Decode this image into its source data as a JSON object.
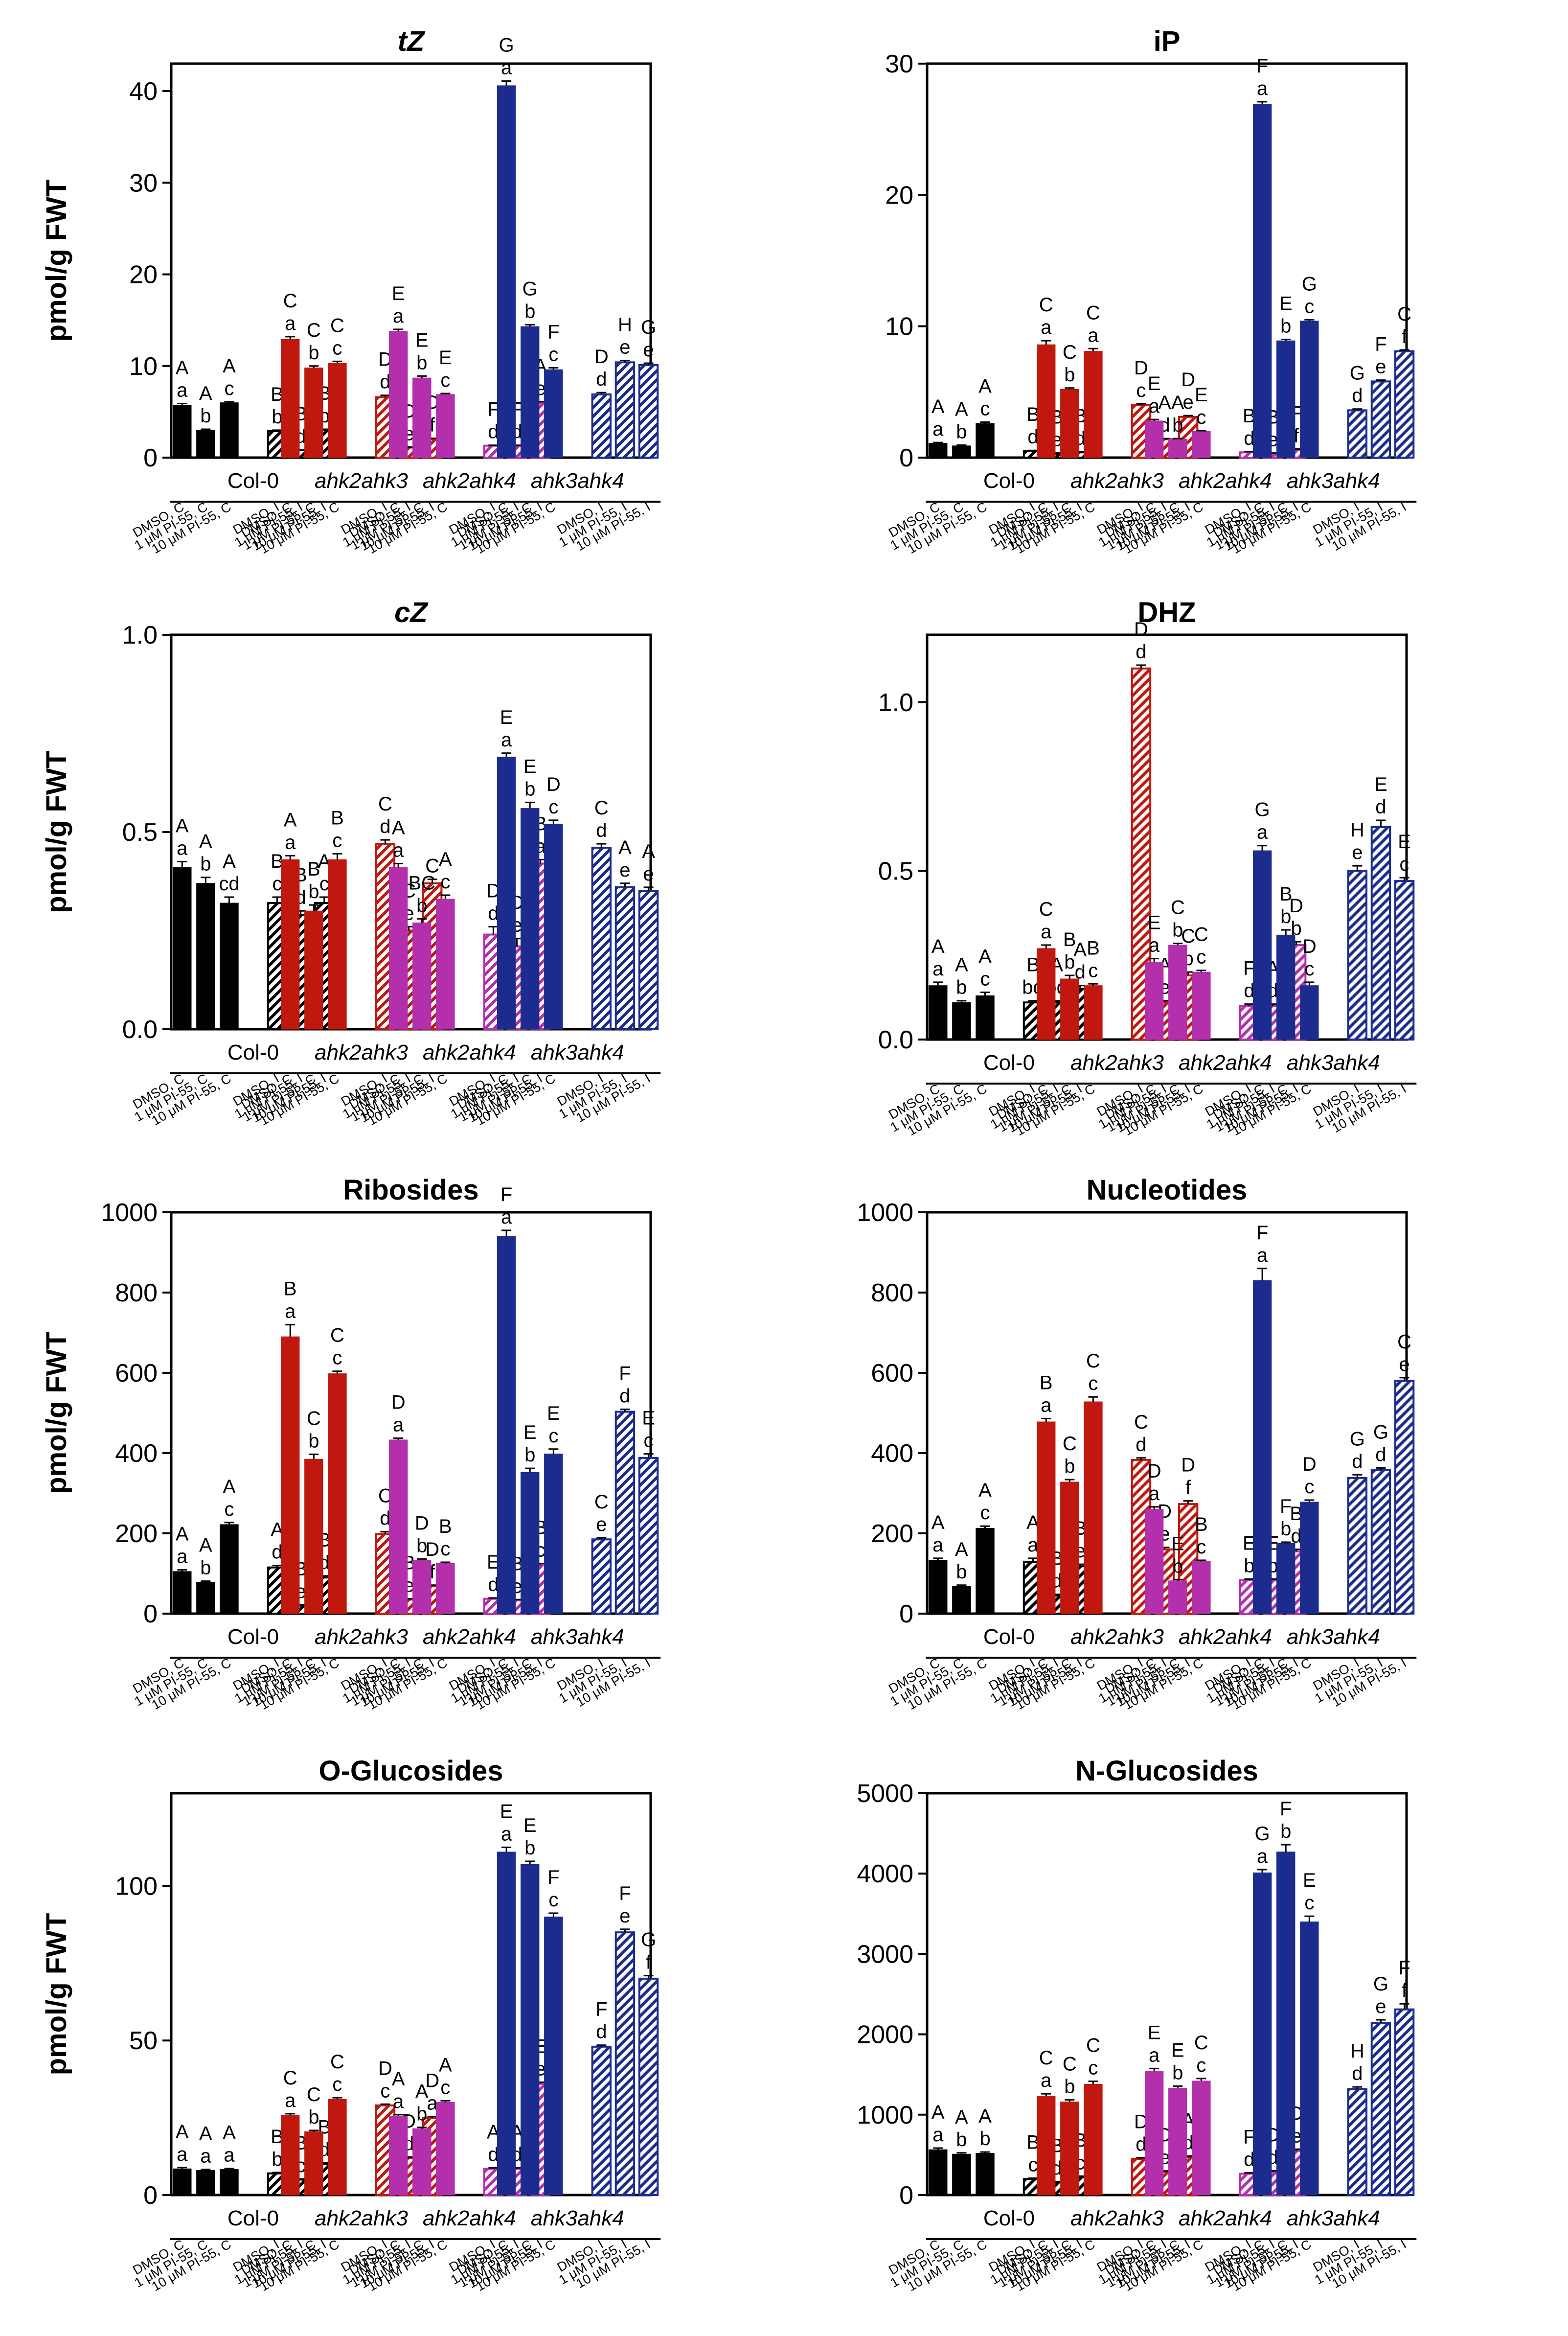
{
  "figure": {
    "colors": {
      "col0": "#000000",
      "ahk2ahk3": "#c0180f",
      "ahk2ahk4": "#b42fac",
      "ahk3ahk4": "#1c2c8e"
    },
    "ylabel": "pmol/g FWT",
    "genotypes": [
      "Col-0",
      "ahk2ahk3",
      "ahk2ahk4",
      "ahk3ahk4"
    ],
    "treatments": [
      "DMSO",
      "1 μM PI-55",
      "10 μM PI-55"
    ],
    "tissue_codes": [
      "C",
      "I"
    ]
  },
  "chart_data": [
    {
      "type": "bar",
      "title": "tZ",
      "ylabel": "pmol/g FWT",
      "ylim": [
        0,
        43
      ],
      "yticks": [
        0,
        10,
        20,
        30,
        40
      ],
      "values": [
        [
          5.7,
          3.0,
          6.0,
          2.9,
          0.8,
          3.0
        ],
        [
          12.9,
          9.8,
          10.3,
          6.6,
          1.1,
          2.0
        ],
        [
          13.8,
          8.7,
          6.9,
          1.3,
          1.3,
          6.0
        ],
        [
          40.6,
          14.3,
          9.6,
          6.9,
          10.4,
          10.1
        ]
      ],
      "errors": [
        [
          0.2,
          0.1,
          0.1,
          0.1,
          0.05,
          0.1
        ],
        [
          0.3,
          0.2,
          0.2,
          0.2,
          0.05,
          0.1
        ],
        [
          0.2,
          0.2,
          0.1,
          0.05,
          0.05,
          0.1
        ],
        [
          0.5,
          0.2,
          0.2,
          0.2,
          0.2,
          0.2
        ]
      ],
      "upper": [
        [
          "A",
          "A",
          "A",
          "B",
          "B",
          "B"
        ],
        [
          "C",
          "C",
          "C",
          "D",
          "D",
          "D"
        ],
        [
          "E",
          "E",
          "E",
          "F",
          "F",
          "A"
        ],
        [
          "G",
          "G",
          "F",
          "D",
          "H",
          "G"
        ]
      ],
      "lower": [
        [
          "a",
          "b",
          "c",
          "b",
          "d",
          "b"
        ],
        [
          "a",
          "b",
          "c",
          "d",
          "e",
          "f"
        ],
        [
          "a",
          "b",
          "c",
          "d",
          "d",
          "e"
        ],
        [
          "a",
          "b",
          "c",
          "d",
          "e",
          "e"
        ]
      ]
    },
    {
      "type": "bar",
      "title": "iP",
      "ylabel": "",
      "ylim": [
        0,
        30
      ],
      "yticks": [
        0,
        10,
        20,
        30
      ],
      "values": [
        [
          1.1,
          0.9,
          2.6,
          0.5,
          0.3,
          0.4
        ],
        [
          8.6,
          5.2,
          8.1,
          4.0,
          1.4,
          3.1
        ],
        [
          2.8,
          1.4,
          2.0,
          0.4,
          0.3,
          0.6
        ],
        [
          26.9,
          8.9,
          10.4,
          3.6,
          5.8,
          8.1
        ]
      ],
      "errors": [
        [
          0.05,
          0.05,
          0.1,
          0.05,
          0.05,
          0.05
        ],
        [
          0.3,
          0.1,
          0.2,
          0.1,
          0.05,
          0.1
        ],
        [
          0.1,
          0.05,
          0.05,
          0.05,
          0.05,
          0.05
        ],
        [
          0.2,
          0.1,
          0.1,
          0.1,
          0.1,
          0.1
        ]
      ],
      "upper": [
        [
          "A",
          "A",
          "A",
          "B",
          "B",
          "B"
        ],
        [
          "C",
          "C",
          "C",
          "D",
          "A",
          "D"
        ],
        [
          "E",
          "A",
          "E",
          "B",
          "B",
          "F"
        ],
        [
          "F",
          "E",
          "G",
          "G",
          "F",
          "C"
        ]
      ],
      "lower": [
        [
          "a",
          "b",
          "c",
          "d",
          "e",
          "d"
        ],
        [
          "a",
          "b",
          "a",
          "c",
          "d",
          "e"
        ],
        [
          "a",
          "b",
          "c",
          "d",
          "e",
          "f"
        ],
        [
          "a",
          "b",
          "c",
          "d",
          "e",
          "f"
        ]
      ]
    },
    {
      "type": "bar",
      "title": "cZ",
      "ylabel": "pmol/g FWT",
      "ylim": [
        0,
        1.0
      ],
      "yticks": [
        0.0,
        0.5,
        1.0
      ],
      "values": [
        [
          0.41,
          0.37,
          0.32,
          0.32,
          0.29,
          0.32
        ],
        [
          0.43,
          0.3,
          0.43,
          0.47,
          0.25,
          0.37
        ],
        [
          0.41,
          0.27,
          0.33,
          0.24,
          0.21,
          0.42
        ],
        [
          0.69,
          0.56,
          0.52,
          0.46,
          0.36,
          0.35
        ]
      ],
      "errors": [
        [
          0.015,
          0.015,
          0.015,
          0.015,
          0.01,
          0.015
        ],
        [
          0.01,
          0.015,
          0.015,
          0.01,
          0.01,
          0.01
        ],
        [
          0.01,
          0.01,
          0.01,
          0.02,
          0.02,
          0.01
        ],
        [
          0.01,
          0.015,
          0.01,
          0.01,
          0.01,
          0.01
        ]
      ],
      "upper": [
        [
          "A",
          "A",
          "A",
          "B",
          "B",
          "A"
        ],
        [
          "A",
          "B",
          "B",
          "C",
          "C",
          "C"
        ],
        [
          "A",
          "BC",
          "A",
          "D",
          "D",
          "B"
        ],
        [
          "E",
          "E",
          "D",
          "C",
          "A",
          "A"
        ]
      ],
      "lower": [
        [
          "a",
          "b",
          "cd",
          "c",
          "d",
          "c"
        ],
        [
          "a",
          "b",
          "c",
          "d",
          "e",
          ""
        ],
        [
          "a",
          "b",
          "c",
          "d",
          "e",
          "a"
        ],
        [
          "a",
          "b",
          "c",
          "d",
          "e",
          "e"
        ]
      ]
    },
    {
      "type": "bar",
      "title": "DHZ",
      "ylabel": "",
      "ylim": [
        0,
        1.2
      ],
      "yticks": [
        0.0,
        0.5,
        1.0
      ],
      "values": [
        [
          0.16,
          0.11,
          0.13,
          0.11,
          0.11,
          0.15
        ],
        [
          0.27,
          0.18,
          0.16,
          1.1,
          0.11,
          0.19
        ],
        [
          0.23,
          0.28,
          0.2,
          0.1,
          0.1,
          0.28
        ],
        [
          0.56,
          0.31,
          0.16,
          0.5,
          0.63,
          0.47
        ]
      ],
      "errors": [
        [
          0.01,
          0.005,
          0.01,
          0.005,
          0.005,
          0.01
        ],
        [
          0.01,
          0.01,
          0.005,
          0.01,
          0.005,
          0.01
        ],
        [
          0.01,
          0.005,
          0.005,
          0.005,
          0.005,
          0.01
        ],
        [
          0.015,
          0.015,
          0.01,
          0.015,
          0.02,
          0.01
        ]
      ],
      "upper": [
        [
          "A",
          "A",
          "A",
          "B",
          "A",
          "A"
        ],
        [
          "C",
          "B",
          "B",
          "D",
          "A",
          "C"
        ],
        [
          "E",
          "C",
          "C",
          "F",
          "A",
          "D"
        ],
        [
          "G",
          "B",
          "D",
          "H",
          "E",
          "E"
        ]
      ],
      "lower": [
        [
          "a",
          "b",
          "c",
          "bd",
          "bd",
          "d"
        ],
        [
          "a",
          "b",
          "c",
          "d",
          "e",
          "b"
        ],
        [
          "a",
          "b",
          "c",
          "d",
          "d",
          "b"
        ],
        [
          "a",
          "b",
          "c",
          "e",
          "d",
          "c"
        ]
      ]
    },
    {
      "type": "bar",
      "title": "Ribosides",
      "ylabel": "pmol/g FWT",
      "ylim": [
        0,
        1000
      ],
      "yticks": [
        0,
        200,
        400,
        600,
        800,
        1000
      ],
      "values": [
        [
          105,
          78,
          222,
          115,
          20,
          90
        ],
        [
          690,
          385,
          598,
          198,
          35,
          68
        ],
        [
          433,
          133,
          125,
          37,
          33,
          122
        ],
        [
          940,
          352,
          398,
          185,
          503,
          388
        ]
      ],
      "errors": [
        [
          4,
          3,
          5,
          5,
          2,
          4
        ],
        [
          30,
          12,
          6,
          6,
          2,
          3
        ],
        [
          4,
          3,
          3,
          2,
          2,
          3
        ],
        [
          15,
          10,
          12,
          4,
          6,
          10
        ]
      ],
      "upper": [
        [
          "A",
          "A",
          "A",
          "A",
          "B",
          "B"
        ],
        [
          "B",
          "C",
          "C",
          "C",
          "B",
          "D"
        ],
        [
          "D",
          "D",
          "B",
          "E",
          "B",
          "B"
        ],
        [
          "F",
          "E",
          "E",
          "C",
          "F",
          "E"
        ]
      ],
      "lower": [
        [
          "a",
          "b",
          "c",
          "d",
          "e",
          "d"
        ],
        [
          "a",
          "b",
          "c",
          "d",
          "e",
          "f"
        ],
        [
          "a",
          "b",
          "c",
          "d",
          "e",
          "c"
        ],
        [
          "a",
          "b",
          "c",
          "e",
          "d",
          "c"
        ]
      ]
    },
    {
      "type": "bar",
      "title": "Nucleotides",
      "ylabel": "",
      "ylim": [
        0,
        1000
      ],
      "yticks": [
        0,
        200,
        400,
        600,
        800,
        1000
      ],
      "values": [
        [
          133,
          68,
          213,
          128,
          45,
          118
        ],
        [
          478,
          328,
          528,
          383,
          160,
          273
        ],
        [
          260,
          82,
          130,
          83,
          83,
          155
        ],
        [
          830,
          175,
          278,
          338,
          358,
          580
        ]
      ],
      "errors": [
        [
          5,
          3,
          5,
          10,
          3,
          5
        ],
        [
          8,
          6,
          12,
          5,
          5,
          8
        ],
        [
          6,
          3,
          3,
          3,
          3,
          5
        ],
        [
          30,
          3,
          5,
          8,
          5,
          8
        ]
      ],
      "upper": [
        [
          "A",
          "A",
          "A",
          "A",
          "B",
          "B"
        ],
        [
          "B",
          "C",
          "C",
          "C",
          "D",
          "D"
        ],
        [
          "D",
          "E",
          "B",
          "E",
          "E",
          "B"
        ],
        [
          "F",
          "F",
          "D",
          "G",
          "G",
          "C"
        ]
      ],
      "lower": [
        [
          "a",
          "b",
          "c",
          "a",
          "d",
          "e"
        ],
        [
          "a",
          "b",
          "c",
          "d",
          "e",
          "f"
        ],
        [
          "a",
          "b",
          "c",
          "b",
          "b",
          "d"
        ],
        [
          "a",
          "b",
          "c",
          "d",
          "d",
          "e"
        ]
      ]
    },
    {
      "type": "bar",
      "title": "O-Glucosides",
      "ylabel": "pmol/g FWT",
      "ylim": [
        0,
        130
      ],
      "yticks": [
        0,
        50,
        100
      ],
      "values": [
        [
          8.5,
          8.0,
          8.3,
          7.0,
          5.0,
          10.0
        ],
        [
          25.8,
          20.5,
          31.0,
          29.0,
          12.0,
          25.0
        ],
        [
          25.5,
          21.5,
          30.0,
          8.5,
          8.5,
          36.0
        ],
        [
          111.0,
          107.0,
          90.0,
          48.0,
          85.0,
          70.0
        ]
      ],
      "errors": [
        [
          0.4,
          0.3,
          0.3,
          0.3,
          0.2,
          0.4
        ],
        [
          0.5,
          0.4,
          0.5,
          0.4,
          0.3,
          0.4
        ],
        [
          0.5,
          0.4,
          0.5,
          0.3,
          0.3,
          0.5
        ],
        [
          1.5,
          1.0,
          1.2,
          0.5,
          1.0,
          1.0
        ]
      ],
      "upper": [
        [
          "A",
          "A",
          "A",
          "B",
          "B",
          "B"
        ],
        [
          "C",
          "C",
          "C",
          "D",
          "D",
          "D"
        ],
        [
          "A",
          "A",
          "A",
          "A",
          "A",
          "E"
        ],
        [
          "E",
          "E",
          "F",
          "F",
          "F",
          "G"
        ]
      ],
      "lower": [
        [
          "a",
          "a",
          "a",
          "b",
          "c",
          "d"
        ],
        [
          "a",
          "b",
          "c",
          "c",
          "d",
          "a"
        ],
        [
          "a",
          "b",
          "c",
          "d",
          "d",
          "e"
        ],
        [
          "a",
          "b",
          "c",
          "d",
          "e",
          "f"
        ]
      ]
    },
    {
      "type": "bar",
      "title": "N-Glucosides",
      "ylabel": "",
      "ylim": [
        0,
        5000
      ],
      "yticks": [
        0,
        1000,
        2000,
        3000,
        4000,
        5000
      ],
      "values": [
        [
          565,
          510,
          520,
          200,
          160,
          225
        ],
        [
          1230,
          1160,
          1380,
          450,
          290,
          470
        ],
        [
          1540,
          1330,
          1420,
          265,
          290,
          550
        ],
        [
          4010,
          4270,
          3400,
          1320,
          2140,
          2310
        ]
      ],
      "errors": [
        [
          20,
          15,
          15,
          10,
          8,
          10
        ],
        [
          30,
          25,
          35,
          15,
          10,
          15
        ],
        [
          35,
          25,
          30,
          12,
          12,
          20
        ],
        [
          40,
          90,
          70,
          25,
          40,
          70
        ]
      ],
      "upper": [
        [
          "A",
          "A",
          "A",
          "B",
          "B",
          "B"
        ],
        [
          "C",
          "C",
          "C",
          "D",
          "D",
          "A"
        ],
        [
          "E",
          "E",
          "C",
          "F",
          "D",
          "D"
        ],
        [
          "G",
          "F",
          "E",
          "H",
          "G",
          "F"
        ]
      ],
      "lower": [
        [
          "a",
          "b",
          "b",
          "c",
          "d",
          "c"
        ],
        [
          "a",
          "b",
          "c",
          "d",
          "e",
          "d"
        ],
        [
          "a",
          "b",
          "c",
          "d",
          "d",
          "e"
        ],
        [
          "a",
          "b",
          "c",
          "d",
          "e",
          "f"
        ]
      ]
    }
  ]
}
